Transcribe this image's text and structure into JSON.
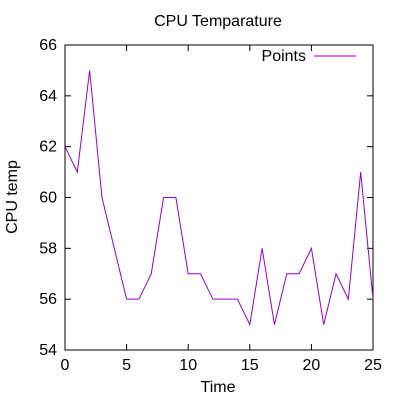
{
  "chart_data": {
    "type": "line",
    "title": "CPU Temparature",
    "xlabel": "Time",
    "ylabel": "CPU temp",
    "xlim": [
      0,
      25
    ],
    "ylim": [
      54,
      66
    ],
    "xticks": [
      0,
      5,
      10,
      15,
      20,
      25
    ],
    "yticks": [
      54,
      56,
      58,
      60,
      62,
      64,
      66
    ],
    "grid": false,
    "legend_position": "top-right",
    "series": [
      {
        "name": "Points",
        "color": "#9400d3",
        "x": [
          0,
          1,
          2,
          3,
          4,
          5,
          6,
          7,
          8,
          9,
          10,
          11,
          12,
          13,
          14,
          15,
          16,
          17,
          18,
          19,
          20,
          21,
          22,
          23,
          24,
          25
        ],
        "y": [
          62,
          61,
          65,
          60,
          58,
          56,
          56,
          57,
          60,
          60,
          57,
          57,
          56,
          56,
          56,
          55,
          58,
          55,
          57,
          57,
          58,
          55,
          57,
          56,
          61,
          56
        ]
      }
    ]
  }
}
